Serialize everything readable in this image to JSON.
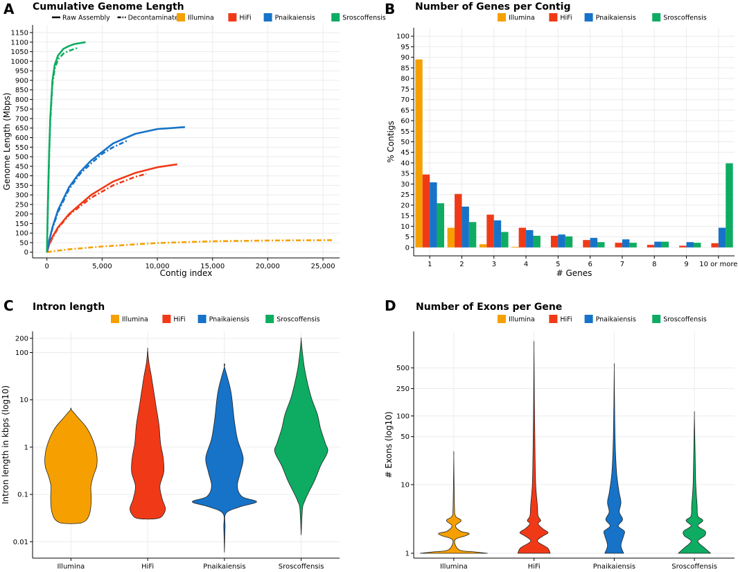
{
  "chart_data": [
    {
      "panel": "A",
      "type": "line",
      "title": "Cumulative Genome Length",
      "xlabel": "Contig index",
      "ylabel": "Genome Length (Mbps)",
      "xlim": [
        -1300,
        26500
      ],
      "ylim": [
        -30,
        1190
      ],
      "xticks": [
        0,
        5000,
        10000,
        15000,
        20000,
        25000
      ],
      "xtick_labels": [
        "0",
        "5,000",
        "10,000",
        "15,000",
        "20,000",
        "25,000"
      ],
      "yticks": [
        0,
        50,
        100,
        150,
        200,
        250,
        300,
        350,
        400,
        450,
        500,
        550,
        600,
        650,
        700,
        750,
        800,
        850,
        900,
        950,
        1000,
        1050,
        1100,
        1150
      ],
      "linetype_legend": [
        {
          "label": "Raw Assembly",
          "dash": "solid"
        },
        {
          "label": "Decontaminated",
          "dash": "dashdot"
        }
      ],
      "color_legend": [
        {
          "label": "Illumina",
          "color": "#F5A000"
        },
        {
          "label": "HiFi",
          "color": "#F03A17"
        },
        {
          "label": "Pnaikaiensis",
          "color": "#1673C8"
        },
        {
          "label": "Sroscoffensis",
          "color": "#0EAC62"
        }
      ],
      "series": [
        {
          "name": "Illumina",
          "linetype": "dashdot",
          "color": "#F5A000",
          "x": [
            0,
            500,
            2000,
            5000,
            10000,
            15000,
            20000,
            26000
          ],
          "y": [
            0,
            5,
            15,
            30,
            48,
            57,
            61,
            63
          ]
        },
        {
          "name": "HiFi",
          "linetype": "solid",
          "color": "#F03A17",
          "x": [
            0,
            200,
            500,
            1000,
            2000,
            3000,
            4000,
            6000,
            8000,
            10000,
            11800
          ],
          "y": [
            0,
            40,
            80,
            130,
            200,
            250,
            300,
            370,
            415,
            445,
            460
          ]
        },
        {
          "name": "HiFi",
          "linetype": "dashdot",
          "color": "#F03A17",
          "x": [
            0,
            200,
            500,
            1000,
            2000,
            3000,
            4000,
            6000,
            8000,
            9000
          ],
          "y": [
            0,
            38,
            75,
            125,
            195,
            240,
            285,
            350,
            395,
            410
          ]
        },
        {
          "name": "Pnaikaiensis",
          "linetype": "solid",
          "color": "#1673C8",
          "x": [
            0,
            200,
            500,
            1000,
            2000,
            3000,
            4000,
            6000,
            8000,
            10000,
            12500
          ],
          "y": [
            0,
            60,
            130,
            220,
            340,
            420,
            480,
            570,
            620,
            645,
            655
          ]
        },
        {
          "name": "Pnaikaiensis",
          "linetype": "dashdot",
          "color": "#1673C8",
          "x": [
            0,
            200,
            500,
            1000,
            2000,
            3000,
            4000,
            5000,
            6000,
            7300
          ],
          "y": [
            0,
            55,
            125,
            210,
            330,
            410,
            465,
            515,
            550,
            585
          ]
        },
        {
          "name": "Sroscoffensis",
          "linetype": "solid",
          "color": "#0EAC62",
          "x": [
            0,
            100,
            200,
            300,
            500,
            700,
            1000,
            1500,
            2000,
            2500,
            3500
          ],
          "y": [
            0,
            280,
            520,
            700,
            900,
            980,
            1030,
            1065,
            1080,
            1090,
            1100
          ]
        },
        {
          "name": "Sroscoffensis",
          "linetype": "dashdot",
          "color": "#0EAC62",
          "x": [
            0,
            100,
            200,
            300,
            500,
            700,
            1000,
            1500,
            2000,
            2800
          ],
          "y": [
            0,
            270,
            500,
            680,
            880,
            960,
            1010,
            1040,
            1055,
            1070
          ]
        }
      ]
    },
    {
      "panel": "B",
      "type": "bar",
      "title": "Number of Genes per Contig",
      "xlabel": "# Genes",
      "ylabel": "% Contigs",
      "ylim": [
        -4,
        104
      ],
      "yticks": [
        0,
        5,
        10,
        15,
        20,
        25,
        30,
        35,
        40,
        45,
        50,
        55,
        60,
        65,
        70,
        75,
        80,
        85,
        90,
        95,
        100
      ],
      "categories": [
        "1",
        "2",
        "3",
        "4",
        "5",
        "6",
        "7",
        "8",
        "9",
        "10 or more"
      ],
      "legend": [
        {
          "label": "Illumina",
          "color": "#F5A000"
        },
        {
          "label": "HiFi",
          "color": "#F03A17"
        },
        {
          "label": "Pnaikaiensis",
          "color": "#1673C8"
        },
        {
          "label": "Sroscoffensis",
          "color": "#0EAC62"
        }
      ],
      "series": [
        {
          "name": "Illumina",
          "color": "#F5A000",
          "values": [
            89,
            9.3,
            1.5,
            0.3,
            0,
            0,
            0,
            0,
            0,
            0
          ]
        },
        {
          "name": "HiFi",
          "color": "#F03A17",
          "values": [
            34.5,
            25.3,
            15.5,
            9.3,
            5.5,
            3.5,
            2.2,
            1.2,
            0.8,
            2
          ]
        },
        {
          "name": "Pnaikaiensis",
          "color": "#1673C8",
          "values": [
            30.8,
            19.3,
            12.8,
            8.2,
            6.1,
            4.5,
            3.8,
            2.7,
            2.5,
            9.3
          ]
        },
        {
          "name": "Sroscoffensis",
          "color": "#0EAC62",
          "values": [
            20.9,
            12,
            7.3,
            5.5,
            5.2,
            2.5,
            2.2,
            2.7,
            2.2,
            39.8
          ]
        }
      ]
    },
    {
      "panel": "C",
      "type": "violin",
      "title": "Intron length",
      "xlabel": "",
      "ylabel": "Intron length in kbps (log10)",
      "scale": "log10",
      "ylim": [
        0.0045,
        280
      ],
      "yticks": [
        0.01,
        0.1,
        1,
        10,
        100,
        200
      ],
      "ytick_labels": [
        "0.01",
        "0.1",
        "1",
        "10",
        "100",
        "200"
      ],
      "categories": [
        "Illumina",
        "HiFi",
        "Pnaikaiensis",
        "Sroscoffensis"
      ],
      "legend": [
        {
          "label": "Illumina",
          "color": "#F5A000"
        },
        {
          "label": "HiFi",
          "color": "#F03A17"
        },
        {
          "label": "Pnaikaiensis",
          "color": "#1673C8"
        },
        {
          "label": "Sroscoffensis",
          "color": "#0EAC62"
        }
      ],
      "violins": [
        {
          "name": "Illumina",
          "color": "#F5A000",
          "profile": [
            [
              0.024,
              0.0
            ],
            [
              0.025,
              0.32
            ],
            [
              0.03,
              0.5
            ],
            [
              0.045,
              0.6
            ],
            [
              0.08,
              0.63
            ],
            [
              0.15,
              0.62
            ],
            [
              0.25,
              0.7
            ],
            [
              0.4,
              0.8
            ],
            [
              0.7,
              0.8
            ],
            [
              1.3,
              0.7
            ],
            [
              2.5,
              0.5
            ],
            [
              4,
              0.25
            ],
            [
              6.3,
              0.0
            ]
          ]
        },
        {
          "name": "HiFi",
          "color": "#F03A17",
          "profile": [
            [
              0.03,
              0.0
            ],
            [
              0.031,
              0.3
            ],
            [
              0.035,
              0.45
            ],
            [
              0.05,
              0.55
            ],
            [
              0.08,
              0.45
            ],
            [
              0.15,
              0.38
            ],
            [
              0.3,
              0.5
            ],
            [
              0.6,
              0.48
            ],
            [
              1.2,
              0.4
            ],
            [
              3,
              0.35
            ],
            [
              8,
              0.25
            ],
            [
              30,
              0.12
            ],
            [
              60,
              0.04
            ],
            [
              115,
              0.0
            ]
          ]
        },
        {
          "name": "Pnaikaiensis",
          "color": "#1673C8",
          "profile": [
            [
              0.006,
              0.0
            ],
            [
              0.02,
              0.02
            ],
            [
              0.04,
              0.05
            ],
            [
              0.055,
              0.5
            ],
            [
              0.07,
              1.0
            ],
            [
              0.09,
              0.55
            ],
            [
              0.15,
              0.4
            ],
            [
              0.3,
              0.5
            ],
            [
              0.6,
              0.58
            ],
            [
              1.5,
              0.4
            ],
            [
              4,
              0.3
            ],
            [
              15,
              0.2
            ],
            [
              50,
              0.0
            ]
          ]
        },
        {
          "name": "Sroscoffensis",
          "color": "#0EAC62",
          "profile": [
            [
              0.014,
              0.0
            ],
            [
              0.05,
              0.04
            ],
            [
              0.07,
              0.1
            ],
            [
              0.1,
              0.2
            ],
            [
              0.2,
              0.42
            ],
            [
              0.4,
              0.6
            ],
            [
              0.8,
              0.82
            ],
            [
              1.2,
              0.75
            ],
            [
              2.5,
              0.6
            ],
            [
              5,
              0.5
            ],
            [
              12,
              0.3
            ],
            [
              40,
              0.12
            ],
            [
              100,
              0.04
            ],
            [
              190,
              0.0
            ]
          ]
        }
      ]
    },
    {
      "panel": "D",
      "type": "violin",
      "title": "Number of Exons per Gene",
      "xlabel": "",
      "ylabel": "# Exons (log10)",
      "scale": "log10",
      "ylim": [
        0.85,
        1700
      ],
      "yticks": [
        1,
        10,
        50,
        100,
        250,
        500
      ],
      "ytick_labels": [
        "1",
        "10",
        "50",
        "100",
        "250",
        "500"
      ],
      "categories": [
        "Illumina",
        "HiFi",
        "Pnaikaiensis",
        "Sroscoffensis"
      ],
      "legend": [
        {
          "label": "Illumina",
          "color": "#F5A000"
        },
        {
          "label": "HiFi",
          "color": "#F03A17"
        },
        {
          "label": "Pnaikaiensis",
          "color": "#1673C8"
        },
        {
          "label": "Sroscoffensis",
          "color": "#0EAC62"
        }
      ],
      "violins": [
        {
          "name": "Illumina",
          "color": "#F5A000",
          "profile": [
            [
              1,
              1.0
            ],
            [
              1.05,
              0.6
            ],
            [
              1.1,
              0.2
            ],
            [
              1.3,
              0.05
            ],
            [
              1.6,
              0.05
            ],
            [
              1.8,
              0.35
            ],
            [
              1.95,
              0.45
            ],
            [
              2.1,
              0.2
            ],
            [
              2.5,
              0.05
            ],
            [
              2.9,
              0.2
            ],
            [
              3.1,
              0.2
            ],
            [
              3.5,
              0.05
            ],
            [
              5,
              0.02
            ],
            [
              25,
              0.0
            ]
          ]
        },
        {
          "name": "HiFi",
          "color": "#F03A17",
          "profile": [
            [
              1,
              0.48
            ],
            [
              1.2,
              0.4
            ],
            [
              1.5,
              0.1
            ],
            [
              1.8,
              0.28
            ],
            [
              2,
              0.42
            ],
            [
              2.3,
              0.25
            ],
            [
              2.7,
              0.12
            ],
            [
              3,
              0.2
            ],
            [
              3.5,
              0.12
            ],
            [
              5,
              0.1
            ],
            [
              10,
              0.05
            ],
            [
              30,
              0.03
            ],
            [
              200,
              0.01
            ],
            [
              1000,
              0.0
            ]
          ]
        },
        {
          "name": "Pnaikaiensis",
          "color": "#1673C8",
          "profile": [
            [
              1,
              0.28
            ],
            [
              1.3,
              0.2
            ],
            [
              1.8,
              0.28
            ],
            [
              2.1,
              0.3
            ],
            [
              2.5,
              0.12
            ],
            [
              3.1,
              0.25
            ],
            [
              4,
              0.15
            ],
            [
              5.5,
              0.2
            ],
            [
              8,
              0.14
            ],
            [
              15,
              0.07
            ],
            [
              40,
              0.03
            ],
            [
              150,
              0.01
            ],
            [
              500,
              0.0
            ]
          ]
        },
        {
          "name": "Sroscoffensis",
          "color": "#0EAC62",
          "profile": [
            [
              1,
              0.48
            ],
            [
              1.2,
              0.3
            ],
            [
              1.5,
              0.1
            ],
            [
              1.8,
              0.3
            ],
            [
              2.1,
              0.32
            ],
            [
              2.5,
              0.1
            ],
            [
              3,
              0.25
            ],
            [
              3.5,
              0.1
            ],
            [
              5,
              0.08
            ],
            [
              10,
              0.04
            ],
            [
              30,
              0.02
            ],
            [
              100,
              0.0
            ]
          ]
        }
      ]
    }
  ]
}
